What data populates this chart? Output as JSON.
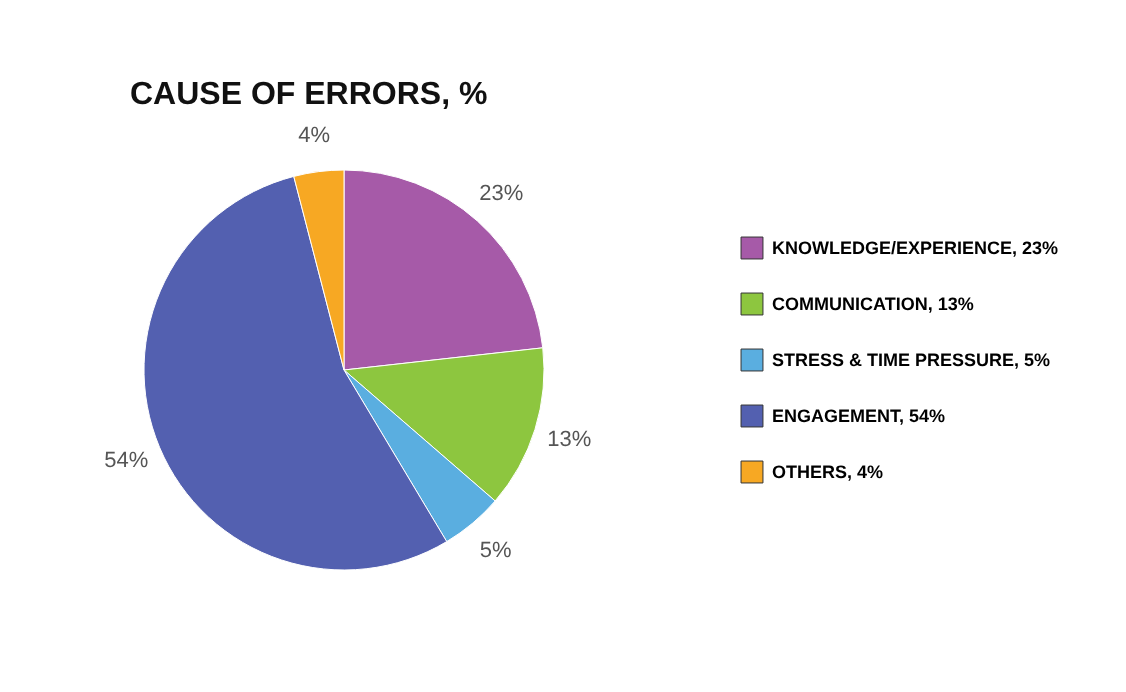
{
  "chart_data": {
    "type": "pie",
    "title": "CAUSE OF ERRORS, %",
    "categories": [
      "KNOWLEDGE/EXPERIENCE, 23%",
      "COMMUNICATION, 13%",
      "STRESS & TIME  PRESSURE, 5%",
      "ENGAGEMENT, 54%",
      "OTHERS, 4%"
    ],
    "values": [
      23,
      13,
      5,
      54,
      4
    ],
    "colors": [
      "#a65aa8",
      "#8dc63f",
      "#5aaee0",
      "#5360b0",
      "#f7a823"
    ],
    "value_labels": [
      "23%",
      "13%",
      "5%",
      "54%",
      "4%"
    ],
    "legend": "right"
  }
}
